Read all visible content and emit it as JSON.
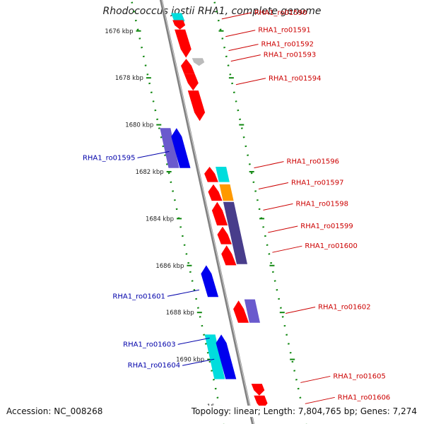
{
  "title": "Rhodococcus jostii RHA1, complete genome",
  "footer": {
    "accession": "Accession: NC_008268",
    "summary": "Topology: linear; Length: 7,804,765 bp; Genes: 7,274"
  },
  "colors": {
    "backbone": "#808080",
    "ruler": "#118811",
    "label_forward": "#cc0000",
    "label_reverse": "#0000aa",
    "red": "#ff0000",
    "blue": "#0000ee",
    "purple": "#6a5acd",
    "navy": "#483d8b",
    "cyan": "#00dddd",
    "orange": "#ff9900",
    "grey": "#bbbbbb"
  },
  "ruler_ticks": [
    {
      "kbp": 1676,
      "label": "1676 kbp"
    },
    {
      "kbp": 1678,
      "label": "1678 kbp"
    },
    {
      "kbp": 1680,
      "label": "1680 kbp"
    },
    {
      "kbp": 1682,
      "label": "1682 kbp"
    },
    {
      "kbp": 1684,
      "label": "1684 kbp"
    },
    {
      "kbp": 1686,
      "label": "1686 kbp"
    },
    {
      "kbp": 1688,
      "label": "1688 kbp"
    },
    {
      "kbp": 1690,
      "label": "1690 kbp"
    },
    {
      "kbp": 1692,
      "label": "16"
    }
  ],
  "genes": [
    {
      "id": "RHA1_ro01590",
      "color": "cyan",
      "track": 1,
      "start": 1675.3,
      "end": 1675.9,
      "strand": 1,
      "labeled": false
    },
    {
      "id": "RHA1_ro01590",
      "color": "red",
      "track": 1,
      "start": 1675.6,
      "end": 1676.0,
      "strand": 1,
      "labeled": true
    },
    {
      "id": "RHA1_ro01591",
      "color": "red",
      "track": 1,
      "start": 1676.0,
      "end": 1677.2,
      "strand": 1,
      "labeled": true
    },
    {
      "id": "RHA1_ro01592",
      "color": "grey",
      "track": 2,
      "start": 1677.22,
      "end": 1677.55,
      "strand": 1,
      "labeled": true
    },
    {
      "id": "RHA1_ro01593",
      "color": "red",
      "track": 1,
      "start": 1677.25,
      "end": 1677.9,
      "strand": -1,
      "labeled": true
    },
    {
      "id": "RHA1_ro01593b",
      "color": "red",
      "track": 1,
      "start": 1677.9,
      "end": 1678.6,
      "strand": 1,
      "labeled": false
    },
    {
      "id": "RHA1_ro01594",
      "color": "red",
      "track": 1,
      "start": 1678.6,
      "end": 1679.9,
      "strand": 1,
      "labeled": true
    },
    {
      "id": "RHA1_ro01595",
      "color": "purple",
      "track": -2,
      "start": 1680.2,
      "end": 1681.9,
      "strand": 0,
      "labeled": false
    },
    {
      "id": "RHA1_ro01595",
      "color": "blue",
      "track": -1,
      "start": 1680.2,
      "end": 1681.9,
      "strand": -1,
      "labeled": true
    },
    {
      "id": "RHA1_ro01596",
      "color": "red",
      "track": 1,
      "start": 1681.85,
      "end": 1682.5,
      "strand": -1,
      "labeled": false
    },
    {
      "id": "RHA1_ro01596",
      "color": "cyan",
      "track": 2,
      "start": 1681.85,
      "end": 1682.5,
      "strand": 0,
      "labeled": true
    },
    {
      "id": "RHA1_ro01597",
      "color": "red",
      "track": 1,
      "start": 1682.6,
      "end": 1683.3,
      "strand": -1,
      "labeled": true
    },
    {
      "id": "RHA1_ro01597",
      "color": "orange",
      "track": 2,
      "start": 1682.6,
      "end": 1683.3,
      "strand": 0,
      "labeled": false
    },
    {
      "id": "RHA1_ro01598",
      "color": "red",
      "track": 1,
      "start": 1683.35,
      "end": 1684.35,
      "strand": -1,
      "labeled": true
    },
    {
      "id": "RHA1_ro01598",
      "color": "navy",
      "track": 2,
      "start": 1683.35,
      "end": 1686.0,
      "strand": 0,
      "labeled": false
    },
    {
      "id": "RHA1_ro01599",
      "color": "red",
      "track": 1,
      "start": 1684.4,
      "end": 1685.15,
      "strand": -1,
      "labeled": true
    },
    {
      "id": "RHA1_ro01600",
      "color": "red",
      "track": 1,
      "start": 1685.2,
      "end": 1686.05,
      "strand": -1,
      "labeled": true
    },
    {
      "id": "RHA1_ro01601",
      "color": "blue",
      "track": -1,
      "start": 1686.05,
      "end": 1687.4,
      "strand": -1,
      "labeled": true
    },
    {
      "id": "RHA1_ro01602",
      "color": "red",
      "track": 1,
      "start": 1687.55,
      "end": 1688.5,
      "strand": -1,
      "labeled": true
    },
    {
      "id": "RHA1_ro01602",
      "color": "purple",
      "track": 2,
      "start": 1687.5,
      "end": 1688.5,
      "strand": 0,
      "labeled": false
    },
    {
      "id": "RHA1_ro01603",
      "color": "cyan",
      "track": -2,
      "start": 1689.0,
      "end": 1690.9,
      "strand": 0,
      "labeled": true
    },
    {
      "id": "RHA1_ro01604",
      "color": "blue",
      "track": -1,
      "start": 1689.0,
      "end": 1690.9,
      "strand": -1,
      "labeled": true
    },
    {
      "id": "RHA1_ro01605",
      "color": "red",
      "track": 1,
      "start": 1691.1,
      "end": 1691.6,
      "strand": 1,
      "labeled": true
    },
    {
      "id": "RHA1_ro01606",
      "color": "red",
      "track": 1,
      "start": 1691.6,
      "end": 1692.2,
      "strand": 1,
      "labeled": true
    }
  ],
  "labels": [
    {
      "text": "RHA1_ro01590",
      "side": "right",
      "kbp": 1675.55
    },
    {
      "text": "RHA1_ro01591",
      "side": "right",
      "kbp": 1676.3
    },
    {
      "text": "RHA1_ro01592",
      "side": "right",
      "kbp": 1676.9
    },
    {
      "text": "RHA1_ro01593",
      "side": "right",
      "kbp": 1677.35
    },
    {
      "text": "RHA1_ro01594",
      "side": "right",
      "kbp": 1678.35
    },
    {
      "text": "RHA1_ro01595",
      "side": "left",
      "kbp": 1681.2
    },
    {
      "text": "RHA1_ro01596",
      "side": "right",
      "kbp": 1681.9
    },
    {
      "text": "RHA1_ro01597",
      "side": "right",
      "kbp": 1682.8
    },
    {
      "text": "RHA1_ro01598",
      "side": "right",
      "kbp": 1683.7
    },
    {
      "text": "RHA1_ro01599",
      "side": "right",
      "kbp": 1684.65
    },
    {
      "text": "RHA1_ro01600",
      "side": "right",
      "kbp": 1685.5
    },
    {
      "text": "RHA1_ro01601",
      "side": "left",
      "kbp": 1687.1
    },
    {
      "text": "RHA1_ro01602",
      "side": "right",
      "kbp": 1688.1
    },
    {
      "text": "RHA1_ro01603",
      "side": "left",
      "kbp": 1689.15
    },
    {
      "text": "RHA1_ro01604",
      "side": "left",
      "kbp": 1690.05
    },
    {
      "text": "RHA1_ro01605",
      "side": "right",
      "kbp": 1691.05
    },
    {
      "text": "RHA1_ro01606",
      "side": "right",
      "kbp": 1691.95
    }
  ]
}
